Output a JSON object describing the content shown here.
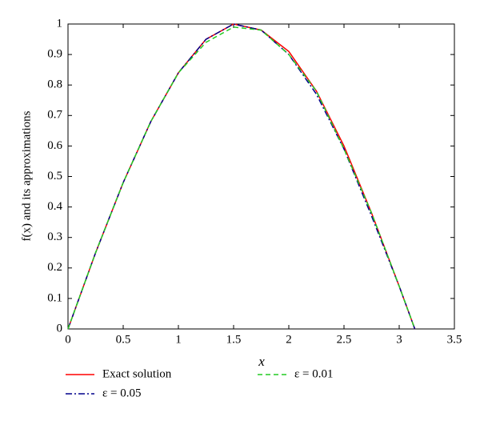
{
  "chart_data": {
    "type": "line",
    "x_label": "x",
    "y_label": "f(x) and its approximations",
    "x": [
      0,
      0.25,
      0.5,
      0.75,
      1,
      1.25,
      1.5,
      1.75,
      2,
      2.25,
      2.5,
      2.75,
      3,
      3.1416
    ],
    "series": [
      {
        "name": "Exact solution",
        "color": "#ff0000",
        "dash": "solid",
        "values": [
          0,
          0.25,
          0.48,
          0.68,
          0.84,
          0.95,
          1.0,
          0.98,
          0.91,
          0.78,
          0.6,
          0.38,
          0.14,
          0
        ]
      },
      {
        "name": "ε = 0.05",
        "color": "#00008b",
        "dash": "dashdot",
        "values": [
          0,
          0.25,
          0.48,
          0.68,
          0.84,
          0.95,
          1.0,
          0.98,
          0.9,
          0.77,
          0.59,
          0.37,
          0.14,
          0
        ]
      },
      {
        "name": "ε = 0.01",
        "color": "#22cc22",
        "dash": "dashed",
        "values": [
          0,
          0.25,
          0.48,
          0.68,
          0.84,
          0.94,
          0.99,
          0.98,
          0.9,
          0.78,
          0.59,
          0.38,
          0.14,
          0
        ]
      }
    ],
    "xlim": [
      0,
      3.5
    ],
    "xticks": [
      0,
      0.5,
      1,
      1.5,
      2,
      2.5,
      3,
      3.5
    ],
    "ylim": [
      0,
      1
    ],
    "yticks": [
      0,
      0.1,
      0.2,
      0.3,
      0.4,
      0.5,
      0.6,
      0.7,
      0.8,
      0.9,
      1
    ],
    "grid": false,
    "legend": "below"
  }
}
